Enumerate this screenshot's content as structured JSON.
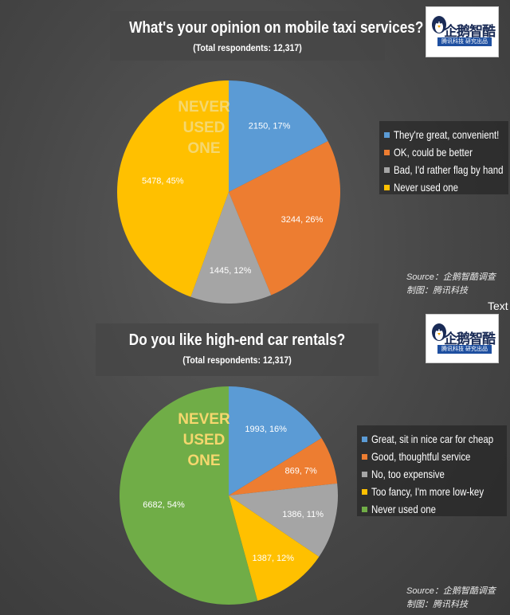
{
  "chart_data": [
    {
      "type": "pie",
      "title": "What's your opinion on mobile taxi services?",
      "subtitle": "(Total respondents: 12,317)",
      "annotation": "Never Used One",
      "legend_placement": "right",
      "slices": [
        {
          "label": "They're great, convenient!",
          "value": 2150,
          "percent": "17%",
          "color": "#5b9bd5"
        },
        {
          "label": "OK, could be better",
          "value": 3244,
          "percent": "26%",
          "color": "#ed7d31"
        },
        {
          "label": "Bad, I'd rather flag by hand",
          "value": 1445,
          "percent": "12%",
          "color": "#a5a5a5"
        },
        {
          "label": "Never used one",
          "value": 5478,
          "percent": "45%",
          "color": "#ffc000"
        }
      ]
    },
    {
      "type": "pie",
      "title": "Do you like high-end car rentals?",
      "subtitle": "(Total respondents: 12,317)",
      "annotation": "Never Used One",
      "legend_placement": "right",
      "slices": [
        {
          "label": "Great, sit in nice car for cheap",
          "value": 1993,
          "percent": "16%",
          "color": "#5b9bd5"
        },
        {
          "label": "Good, thoughtful service",
          "value": 869,
          "percent": "7%",
          "color": "#ed7d31"
        },
        {
          "label": "No, too expensive",
          "value": 1386,
          "percent": "11%",
          "color": "#a5a5a5"
        },
        {
          "label": "Too fancy, I'm more low-key",
          "value": 1387,
          "percent": "12%",
          "color": "#ffc000"
        },
        {
          "label": "Never used one",
          "value": 6682,
          "percent": "54%",
          "color": "#70ad47"
        }
      ]
    }
  ],
  "logo": {
    "name": "企鹅智酷",
    "tagline": "腾讯科技 研究出品"
  },
  "source": {
    "line1": "Source：企鹅智酷调查",
    "line2": "制图：腾讯科技"
  },
  "misc": {
    "text_tag": "Text"
  }
}
